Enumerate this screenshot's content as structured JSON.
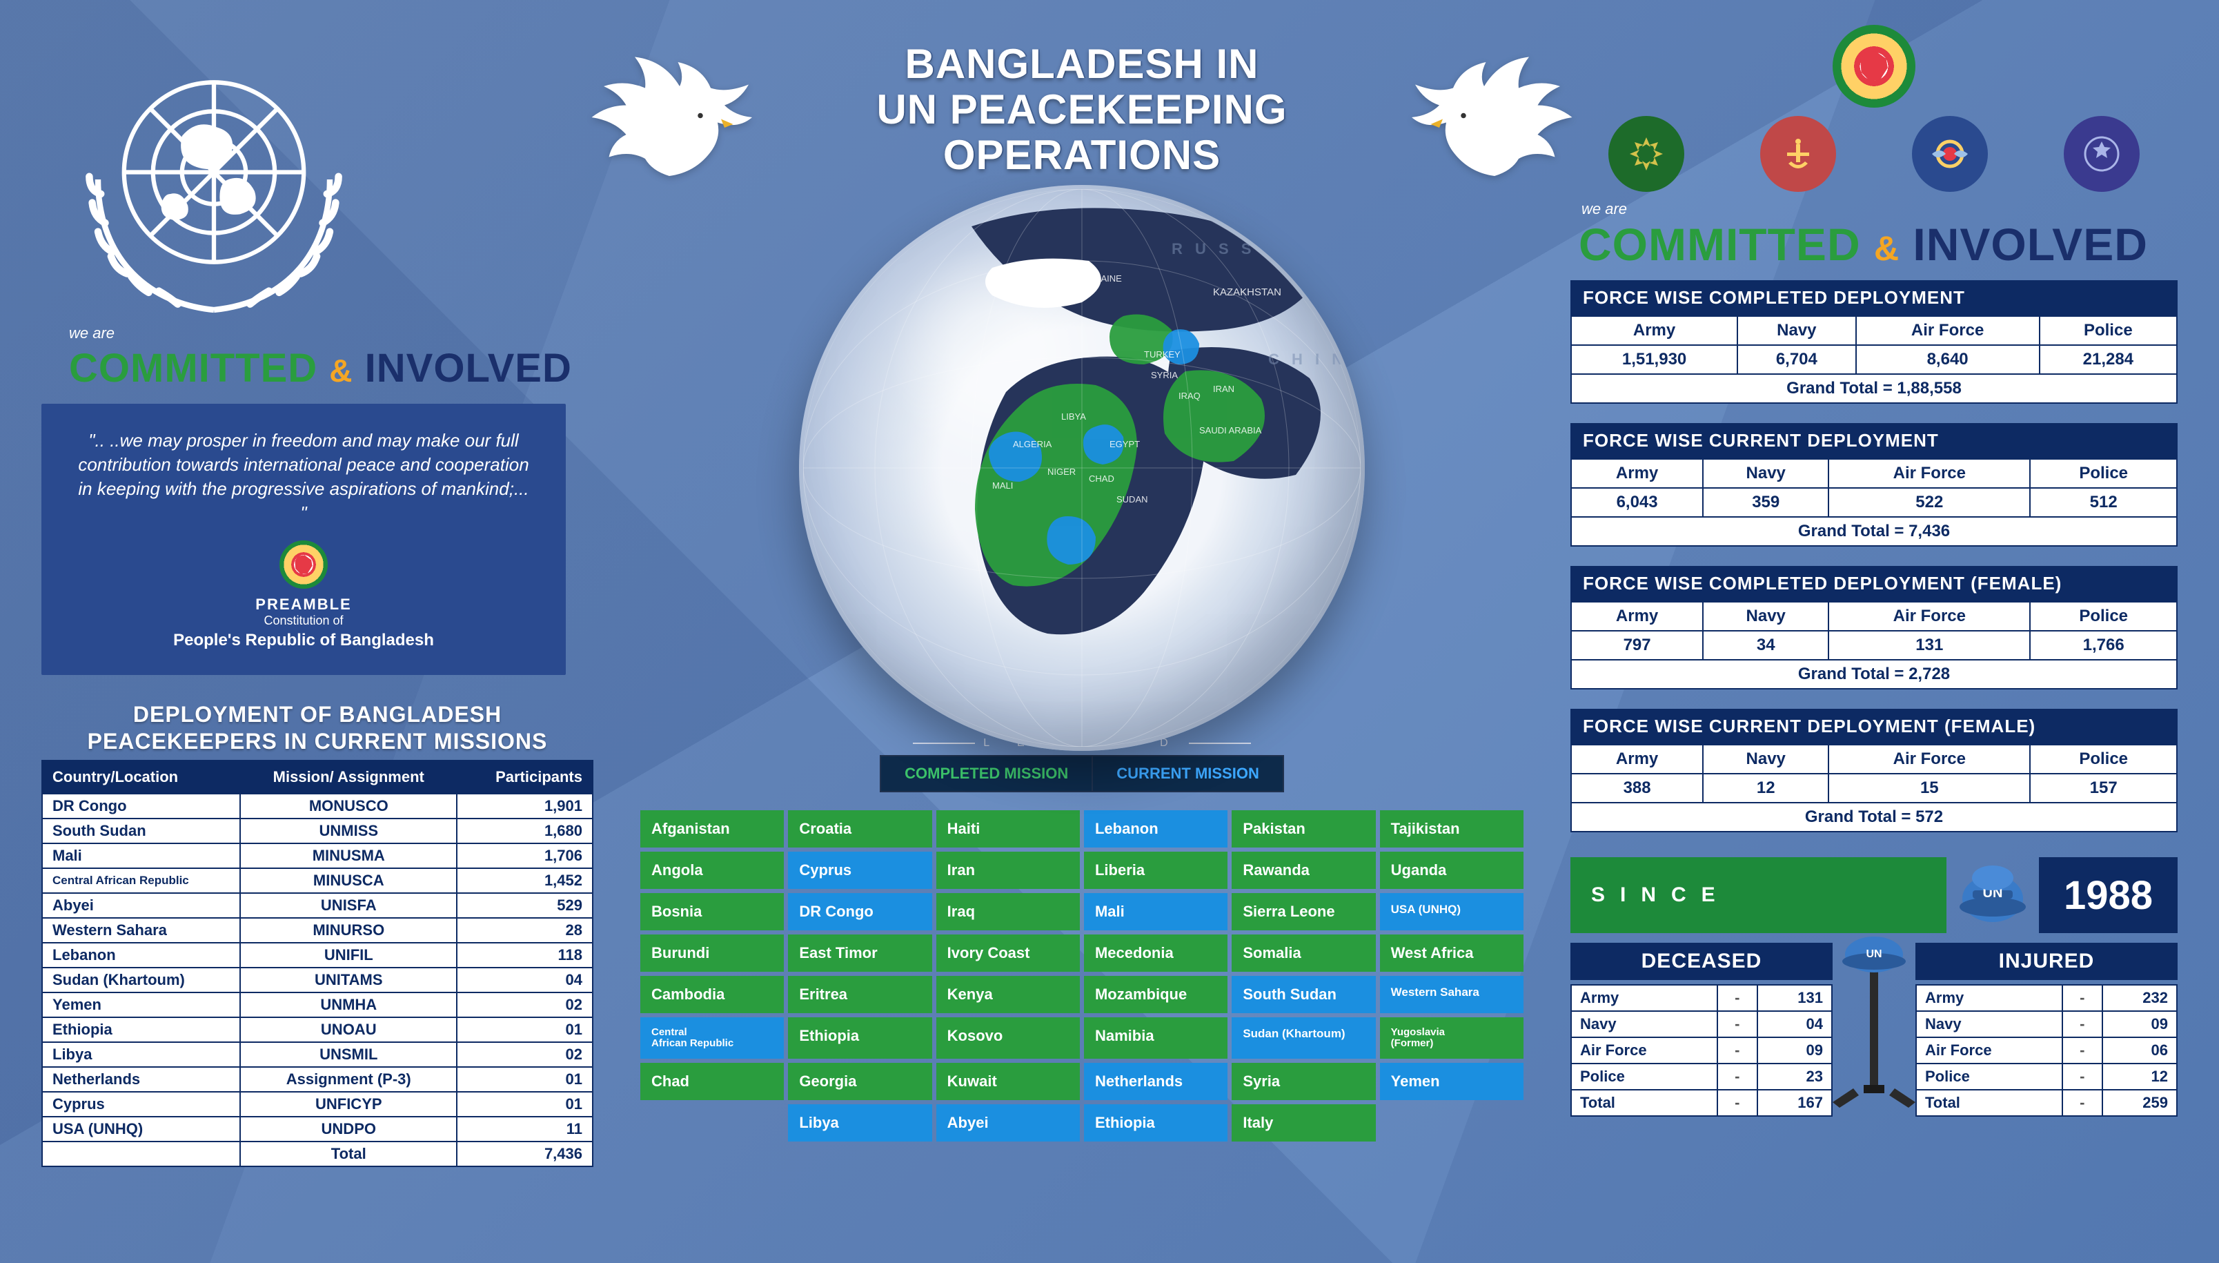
{
  "title_line1": "BANGLADESH IN",
  "title_line2": "UN PEACEKEEPING",
  "title_line3": "OPERATIONS",
  "left": {
    "we_are": "we are",
    "committed": "COMMITTED",
    "amp": "&",
    "involved": "INVOLVED",
    "quote": "\".. ..we may prosper in freedom and may make our full contribution towards international peace and cooperation in keeping with the progressive aspirations of mankind;... \"",
    "preamble": "PREAMBLE",
    "preamble_sub": "Constitution of",
    "preamble_nation": "People's Republic of Bangladesh",
    "deploy_title_l1": "DEPLOYMENT OF BANGLADESH",
    "deploy_title_l2": "PEACEKEEPERS IN CURRENT MISSIONS",
    "missions_table": {
      "columns": [
        "Country/Location",
        "Mission/ Assignment",
        "Participants"
      ],
      "rows": [
        {
          "c": "DR Congo",
          "m": "MONUSCO",
          "p": "1,901"
        },
        {
          "c": "South Sudan",
          "m": "UNMISS",
          "p": "1,680"
        },
        {
          "c": "Mali",
          "m": "MINUSMA",
          "p": "1,706"
        },
        {
          "c": "Central African Republic",
          "m": "MINUSCA",
          "p": "1,452",
          "small": true
        },
        {
          "c": "Abyei",
          "m": "UNISFA",
          "p": "529"
        },
        {
          "c": "Western Sahara",
          "m": "MINURSO",
          "p": "28"
        },
        {
          "c": "Lebanon",
          "m": "UNIFIL",
          "p": "118"
        },
        {
          "c": "Sudan (Khartoum)",
          "m": "UNITAMS",
          "p": "04"
        },
        {
          "c": "Yemen",
          "m": "UNMHA",
          "p": "02"
        },
        {
          "c": "Ethiopia",
          "m": "UNOAU",
          "p": "01"
        },
        {
          "c": "Libya",
          "m": "UNSMIL",
          "p": "02"
        },
        {
          "c": "Netherlands",
          "m": "Assignment (P-3)",
          "p": "01"
        },
        {
          "c": "Cyprus",
          "m": "UNFICYP",
          "p": "01"
        },
        {
          "c": "USA (UNHQ)",
          "m": "UNDPO",
          "p": "11"
        }
      ],
      "total_label": "Total",
      "total_value": "7,436"
    }
  },
  "center": {
    "legend_title": "L E G E N D",
    "legend_completed": "COMPLETED MISSION",
    "legend_current": "CURRENT MISSION",
    "colors": {
      "completed": "#2a9d3e",
      "current": "#1b8fe0"
    },
    "countries": [
      {
        "n": "Afganistan",
        "s": "completed"
      },
      {
        "n": "Croatia",
        "s": "completed"
      },
      {
        "n": "Haiti",
        "s": "completed"
      },
      {
        "n": "Lebanon",
        "s": "current"
      },
      {
        "n": "Pakistan",
        "s": "completed"
      },
      {
        "n": "Tajikistan",
        "s": "completed"
      },
      {
        "n": "Angola",
        "s": "completed"
      },
      {
        "n": "Cyprus",
        "s": "current"
      },
      {
        "n": "Iran",
        "s": "completed"
      },
      {
        "n": "Liberia",
        "s": "completed"
      },
      {
        "n": "Rawanda",
        "s": "completed"
      },
      {
        "n": "Uganda",
        "s": "completed"
      },
      {
        "n": "Bosnia",
        "s": "completed"
      },
      {
        "n": "DR Congo",
        "s": "current"
      },
      {
        "n": "Iraq",
        "s": "completed"
      },
      {
        "n": "Mali",
        "s": "current"
      },
      {
        "n": "Sierra Leone",
        "s": "completed"
      },
      {
        "n": "USA (UNHQ)",
        "s": "current",
        "sz": "smaller"
      },
      {
        "n": "Burundi",
        "s": "completed"
      },
      {
        "n": "East Timor",
        "s": "completed"
      },
      {
        "n": "Ivory Coast",
        "s": "completed"
      },
      {
        "n": "Mecedonia",
        "s": "completed"
      },
      {
        "n": "Somalia",
        "s": "completed"
      },
      {
        "n": "West Africa",
        "s": "completed"
      },
      {
        "n": "Cambodia",
        "s": "completed"
      },
      {
        "n": "Eritrea",
        "s": "completed"
      },
      {
        "n": "Kenya",
        "s": "completed"
      },
      {
        "n": "Mozambique",
        "s": "completed"
      },
      {
        "n": "South Sudan",
        "s": "current"
      },
      {
        "n": "Western Sahara",
        "s": "current",
        "sz": "smaller"
      },
      {
        "n": "Central\\nAfrican Republic",
        "s": "current",
        "sz": "small"
      },
      {
        "n": "Ethiopia",
        "s": "completed"
      },
      {
        "n": "Kosovo",
        "s": "completed"
      },
      {
        "n": "Namibia",
        "s": "completed"
      },
      {
        "n": "Sudan (Khartoum)",
        "s": "current",
        "sz": "smaller"
      },
      {
        "n": "Yugoslavia\\n(Former)",
        "s": "completed",
        "sz": "small"
      },
      {
        "n": "Chad",
        "s": "completed"
      },
      {
        "n": "Georgia",
        "s": "completed"
      },
      {
        "n": "Kuwait",
        "s": "completed"
      },
      {
        "n": "Netherlands",
        "s": "current"
      },
      {
        "n": "Syria",
        "s": "completed"
      },
      {
        "n": "Yemen",
        "s": "current"
      },
      {
        "n": "",
        "s": ""
      },
      {
        "n": "Libya",
        "s": "current"
      },
      {
        "n": "Abyei",
        "s": "current"
      },
      {
        "n": "Ethiopia",
        "s": "current"
      },
      {
        "n": "Italy",
        "s": "completed"
      },
      {
        "n": "",
        "s": ""
      }
    ]
  },
  "right": {
    "we_are": "we are",
    "committed": "COMMITTED",
    "amp": "&",
    "involved": "INVOLVED",
    "blocks": [
      {
        "title": "FORCE WISE COMPLETED DEPLOYMENT",
        "cols": [
          "Army",
          "Navy",
          "Air Force",
          "Police"
        ],
        "vals": [
          "1,51,930",
          "6,704",
          "8,640",
          "21,284"
        ],
        "total": "Grand Total = 1,88,558"
      },
      {
        "title": "FORCE WISE CURRENT DEPLOYMENT",
        "cols": [
          "Army",
          "Navy",
          "Air Force",
          "Police"
        ],
        "vals": [
          "6,043",
          "359",
          "522",
          "512"
        ],
        "total": "Grand Total = 7,436"
      },
      {
        "title": "FORCE WISE COMPLETED DEPLOYMENT (FEMALE)",
        "cols": [
          "Army",
          "Navy",
          "Air Force",
          "Police"
        ],
        "vals": [
          "797",
          "34",
          "131",
          "1,766"
        ],
        "total": "Grand Total = 2,728"
      },
      {
        "title": "FORCE WISE CURRENT DEPLOYMENT (FEMALE)",
        "cols": [
          "Army",
          "Navy",
          "Air Force",
          "Police"
        ],
        "vals": [
          "388",
          "12",
          "15",
          "157"
        ],
        "total": "Grand Total = 572"
      }
    ],
    "since_label": "SINCE",
    "since_year": "1988",
    "deceased": {
      "title": "DECEASED",
      "rows": [
        {
          "k": "Army",
          "v": "131"
        },
        {
          "k": "Navy",
          "v": "04"
        },
        {
          "k": "Air Force",
          "v": "09"
        },
        {
          "k": "Police",
          "v": "23"
        },
        {
          "k": "Total",
          "v": "167",
          "total": true
        }
      ]
    },
    "injured": {
      "title": "INJURED",
      "rows": [
        {
          "k": "Army",
          "v": "232"
        },
        {
          "k": "Navy",
          "v": "09"
        },
        {
          "k": "Air Force",
          "v": "06"
        },
        {
          "k": "Police",
          "v": "12"
        },
        {
          "k": "Total",
          "v": "259",
          "total": true
        }
      ]
    }
  }
}
